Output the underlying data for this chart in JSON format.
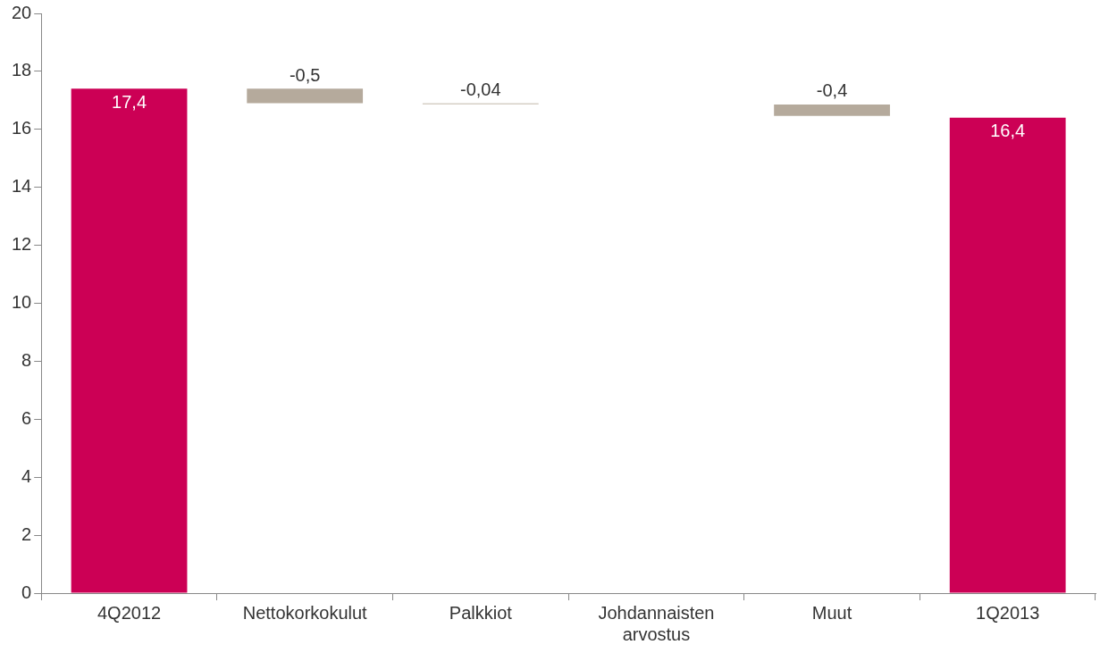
{
  "chart_data": {
    "type": "bar",
    "categories": [
      "4Q2012",
      "Nettokorkokulut",
      "Palkkiot",
      "Johdannaisten arvostus",
      "Muut",
      "1Q2013"
    ],
    "values": [
      17.4,
      -0.5,
      -0.04,
      null,
      -0.4,
      16.4
    ],
    "base": [
      0,
      17.4,
      16.9,
      null,
      16.86,
      0
    ],
    "colors": [
      "#cc0055",
      "#b5aa9c",
      "#d6cfc5",
      "#b5aa9c",
      "#b5aa9c",
      "#cc0055"
    ],
    "value_labels": [
      "17,4",
      "-0,5",
      "-0,04",
      null,
      "-0,4",
      "16,4"
    ],
    "ylim": [
      0,
      20
    ],
    "yticks": [
      0,
      2,
      4,
      6,
      8,
      10,
      12,
      14,
      16,
      18,
      20
    ],
    "grid": false,
    "legend": false
  }
}
